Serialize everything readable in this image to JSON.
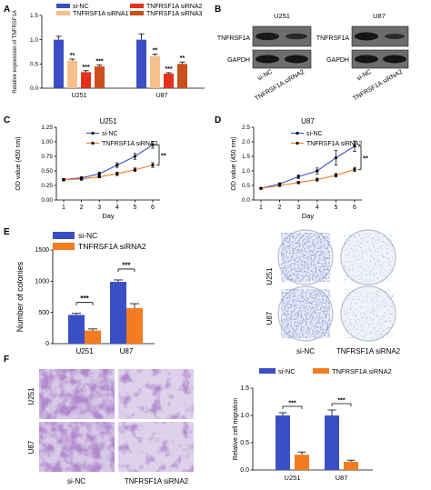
{
  "panels": {
    "A": "A",
    "B": "B",
    "C": "C",
    "D": "D",
    "E": "E",
    "F": "F"
  },
  "colors": {
    "blue": "#3b4fc4",
    "light_orange": "#f7c08a",
    "red": "#e3321c",
    "dark_orange": "#c9501c",
    "orange": "#f47c20",
    "purple": "#8a5ab8",
    "blot_dark": "#1a1a1a",
    "blot_bg": "#6d6d6d",
    "dish_blue": "#3d5cb3"
  },
  "chart_data": [
    {
      "id": "A",
      "type": "bar",
      "ylabel": "Relative expression of TNFRSF1A",
      "ylim": [
        0,
        1.5
      ],
      "yticks": [
        0,
        0.5,
        1,
        1.5
      ],
      "yticklabels": [
        "0.0",
        "0.5",
        "1.0",
        "1.5"
      ],
      "categories": [
        "U251",
        "U87"
      ],
      "series": [
        {
          "name": "si-NC",
          "values": [
            1.0,
            1.0
          ],
          "errors": [
            0.07,
            0.12
          ]
        },
        {
          "name": "TNFRSF1A siRNA1",
          "values": [
            0.57,
            0.66
          ],
          "errors": [
            0.03,
            0.04
          ]
        },
        {
          "name": "TNFRSF1A siRNA2",
          "values": [
            0.33,
            0.3
          ],
          "errors": [
            0.03,
            0.02
          ]
        },
        {
          "name": "TNFRSF1A siRNA3",
          "values": [
            0.45,
            0.5
          ],
          "errors": [
            0.03,
            0.04
          ]
        }
      ],
      "significance": [
        [
          "**",
          "***",
          "***"
        ],
        [
          "**",
          "***",
          "**"
        ]
      ],
      "legend": "top"
    },
    {
      "id": "C",
      "type": "line",
      "title": "U251",
      "xlabel": "Day",
      "ylabel": "OD value (450 nm)",
      "x": [
        1,
        2,
        3,
        4,
        5,
        6
      ],
      "ylim": [
        0,
        1.25
      ],
      "yticks": [
        0,
        0.25,
        0.5,
        0.75,
        1,
        1.25
      ],
      "yticklabels": [
        "0.00",
        "0.25",
        "0.50",
        "0.75",
        "1.00",
        "1.25"
      ],
      "series": [
        {
          "name": "si-NC",
          "values": [
            0.35,
            0.38,
            0.45,
            0.6,
            0.75,
            0.95
          ],
          "errors": [
            0.02,
            0.02,
            0.03,
            0.04,
            0.05,
            0.06
          ]
        },
        {
          "name": "TNFRSF1A siRNA2",
          "values": [
            0.35,
            0.36,
            0.4,
            0.45,
            0.52,
            0.6
          ],
          "errors": [
            0.02,
            0.02,
            0.02,
            0.03,
            0.03,
            0.04
          ]
        }
      ],
      "significance": "**",
      "legend": "top-right"
    },
    {
      "id": "D",
      "type": "line",
      "title": "U87",
      "xlabel": "Day",
      "ylabel": "OD value (450 nm)",
      "x": [
        1,
        2,
        3,
        4,
        5,
        6
      ],
      "ylim": [
        0,
        2.5
      ],
      "yticks": [
        0,
        0.5,
        1,
        1.5,
        2,
        2.5
      ],
      "yticklabels": [
        "0.0",
        "0.5",
        "1.0",
        "1.5",
        "2.0",
        "2.5"
      ],
      "series": [
        {
          "name": "si-NC",
          "values": [
            0.4,
            0.55,
            0.8,
            1.0,
            1.45,
            1.85
          ],
          "errors": [
            0.03,
            0.04,
            0.06,
            0.1,
            0.25,
            0.18
          ]
        },
        {
          "name": "TNFRSF1A siRNA2",
          "values": [
            0.4,
            0.5,
            0.6,
            0.7,
            0.85,
            1.05
          ],
          "errors": [
            0.02,
            0.03,
            0.04,
            0.05,
            0.06,
            0.07
          ]
        }
      ],
      "significance": "**",
      "legend": "top-right"
    },
    {
      "id": "E",
      "type": "bar",
      "ylabel": "Number of colonies",
      "ylim": [
        0,
        1500
      ],
      "yticks": [
        0,
        500,
        1000,
        1500
      ],
      "yticklabels": [
        "0",
        "500",
        "1000",
        "1500"
      ],
      "categories": [
        "U251",
        "U87"
      ],
      "series": [
        {
          "name": "si-NC",
          "values": [
            460,
            990
          ],
          "errors": [
            25,
            30
          ]
        },
        {
          "name": "TNFRSF1A siRNA2",
          "values": [
            210,
            570
          ],
          "errors": [
            25,
            70
          ]
        }
      ],
      "significance": [
        "***",
        "***"
      ],
      "legend": "top-left"
    },
    {
      "id": "F",
      "type": "bar",
      "ylabel": "Relative cell migration",
      "ylim": [
        0,
        1.5
      ],
      "yticks": [
        0,
        0.5,
        1,
        1.5
      ],
      "yticklabels": [
        "0.0",
        "0.5",
        "1.0",
        "1.5"
      ],
      "categories": [
        "U251",
        "U87"
      ],
      "series": [
        {
          "name": "si-NC",
          "values": [
            1.0,
            1.0
          ],
          "errors": [
            0.05,
            0.1
          ]
        },
        {
          "name": "TNFRSF1A siRNA2",
          "values": [
            0.28,
            0.15
          ],
          "errors": [
            0.05,
            0.03
          ]
        }
      ],
      "significance": [
        "***",
        "***"
      ],
      "legend": "top"
    }
  ],
  "blots": {
    "U251": {
      "title": "U251",
      "rows": [
        "TNFRSF1A",
        "GAPDH"
      ],
      "lanes": [
        "si-NC",
        "TNFRSF1A siRNA2"
      ]
    },
    "U87": {
      "title": "U87",
      "rows": [
        "TNFRSF1A",
        "GAPDH"
      ],
      "lanes": [
        "si-NC",
        "TNFRSF1A siRNA2"
      ]
    }
  },
  "colony_images": {
    "rows": [
      "U251",
      "U87"
    ],
    "cols": [
      "si-NC",
      "TNFRSF1A siRNA2"
    ]
  },
  "migration_images": {
    "rows": [
      "U251",
      "U87"
    ],
    "cols": [
      "si-NC",
      "TNFRSF1A siRNA2"
    ]
  }
}
